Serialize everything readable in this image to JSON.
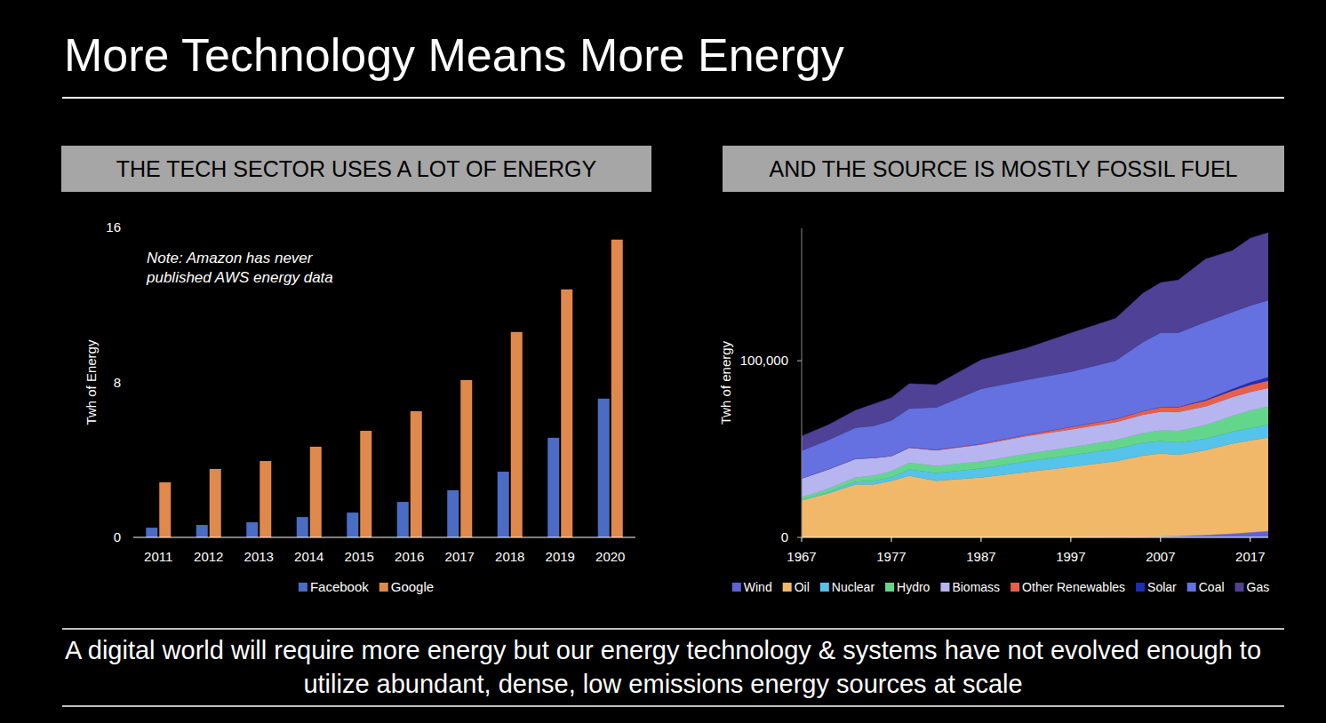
{
  "title": "More Technology Means More Energy",
  "caption": "A digital world will require more energy but our energy technology & systems have not evolved enough to utilize abundant, dense, low emissions energy sources at scale",
  "chart_data": [
    {
      "type": "bar",
      "title": "THE TECH SECTOR USES A LOT OF ENERGY",
      "y_label": "Twh of Energy",
      "annotation": "Note: Amazon has never published AWS energy data",
      "categories": [
        "2011",
        "2012",
        "2013",
        "2014",
        "2015",
        "2016",
        "2017",
        "2018",
        "2019",
        "2020"
      ],
      "ylim": [
        0,
        16
      ],
      "yticks": [
        0,
        8,
        16
      ],
      "legend": "bottom",
      "series": [
        {
          "name": "Facebook",
          "color": "#4a6cc4",
          "values": [
            0.5,
            0.64,
            0.78,
            1.05,
            1.28,
            1.83,
            2.43,
            3.39,
            5.14,
            7.16
          ]
        },
        {
          "name": "Google",
          "color": "#e0894c",
          "values": [
            2.84,
            3.53,
            3.94,
            4.68,
            5.5,
            6.51,
            8.12,
            10.6,
            12.8,
            15.37
          ]
        }
      ]
    },
    {
      "type": "area",
      "stacked": true,
      "title": "AND THE SOURCE IS MOSTLY FOSSIL FUEL",
      "y_label": "Twh of energy",
      "x": [
        1967,
        1970,
        1973,
        1975,
        1977,
        1979,
        1982,
        1987,
        1992,
        1997,
        2002,
        2005,
        2007,
        2009,
        2012,
        2015,
        2017,
        2019
      ],
      "xlim": [
        1967,
        2019
      ],
      "xticks": [
        1967,
        1977,
        1987,
        1997,
        2007,
        2017
      ],
      "ylim": [
        0,
        175000
      ],
      "yticks": [
        0,
        {
          "value": 100000,
          "label": "100,000"
        }
      ],
      "legend": "bottom",
      "series": [
        {
          "name": "Wind",
          "color": "#5d63d4",
          "values": [
            0,
            0,
            0,
            0,
            0,
            0,
            0,
            0,
            0,
            0,
            100,
            300,
            500,
            800,
            1400,
            2200,
            2900,
            3600
          ]
        },
        {
          "name": "Oil",
          "color": "#f2b86a",
          "values": [
            21000,
            25000,
            30000,
            30000,
            32000,
            35000,
            32000,
            34000,
            37000,
            40000,
            43000,
            46000,
            47000,
            46000,
            48000,
            51000,
            52000,
            53000
          ]
        },
        {
          "name": "Nuclear",
          "color": "#55c3ea",
          "values": [
            200,
            600,
            1500,
            2000,
            2000,
            3500,
            4500,
            5000,
            6000,
            6500,
            7000,
            7200,
            7100,
            7000,
            6400,
            6600,
            7000,
            7200
          ]
        },
        {
          "name": "Hydro",
          "color": "#63d68c",
          "values": [
            1500,
            2000,
            2500,
            3000,
            3500,
            3800,
            4000,
            4000,
            4300,
            4600,
            5000,
            5500,
            6000,
            6600,
            7800,
            9000,
            10000,
            10300
          ]
        },
        {
          "name": "Biomass",
          "color": "#b6b5f0",
          "values": [
            10800,
            11000,
            10500,
            10000,
            8500,
            8500,
            8800,
            9600,
            10000,
            10000,
            10200,
            10400,
            10600,
            10600,
            10600,
            10600,
            10500,
            10500
          ]
        },
        {
          "name": "Other Renewables",
          "color": "#e8604a",
          "values": [
            0,
            100,
            100,
            100,
            200,
            200,
            300,
            500,
            800,
            1500,
            1800,
            2100,
            2500,
            2800,
            3300,
            3700,
            4000,
            4200
          ]
        },
        {
          "name": "Solar",
          "color": "#1f2cb5",
          "values": [
            0,
            0,
            0,
            0,
            0,
            0,
            0,
            0,
            0,
            0,
            0,
            0,
            50,
            100,
            500,
            1000,
            1500,
            2000
          ]
        },
        {
          "name": "Coal",
          "color": "#6571e0",
          "values": [
            15600,
            16500,
            17500,
            18000,
            20000,
            22000,
            24000,
            31000,
            31000,
            31200,
            33000,
            39000,
            42200,
            42000,
            44000,
            43500,
            43300,
            43500
          ]
        },
        {
          "name": "Gas",
          "color": "#4f4196",
          "values": [
            8200,
            8600,
            9800,
            12300,
            12800,
            14000,
            12800,
            16400,
            17900,
            21800,
            23900,
            27500,
            28200,
            29800,
            35500,
            34700,
            38200,
            38200
          ]
        }
      ]
    }
  ]
}
